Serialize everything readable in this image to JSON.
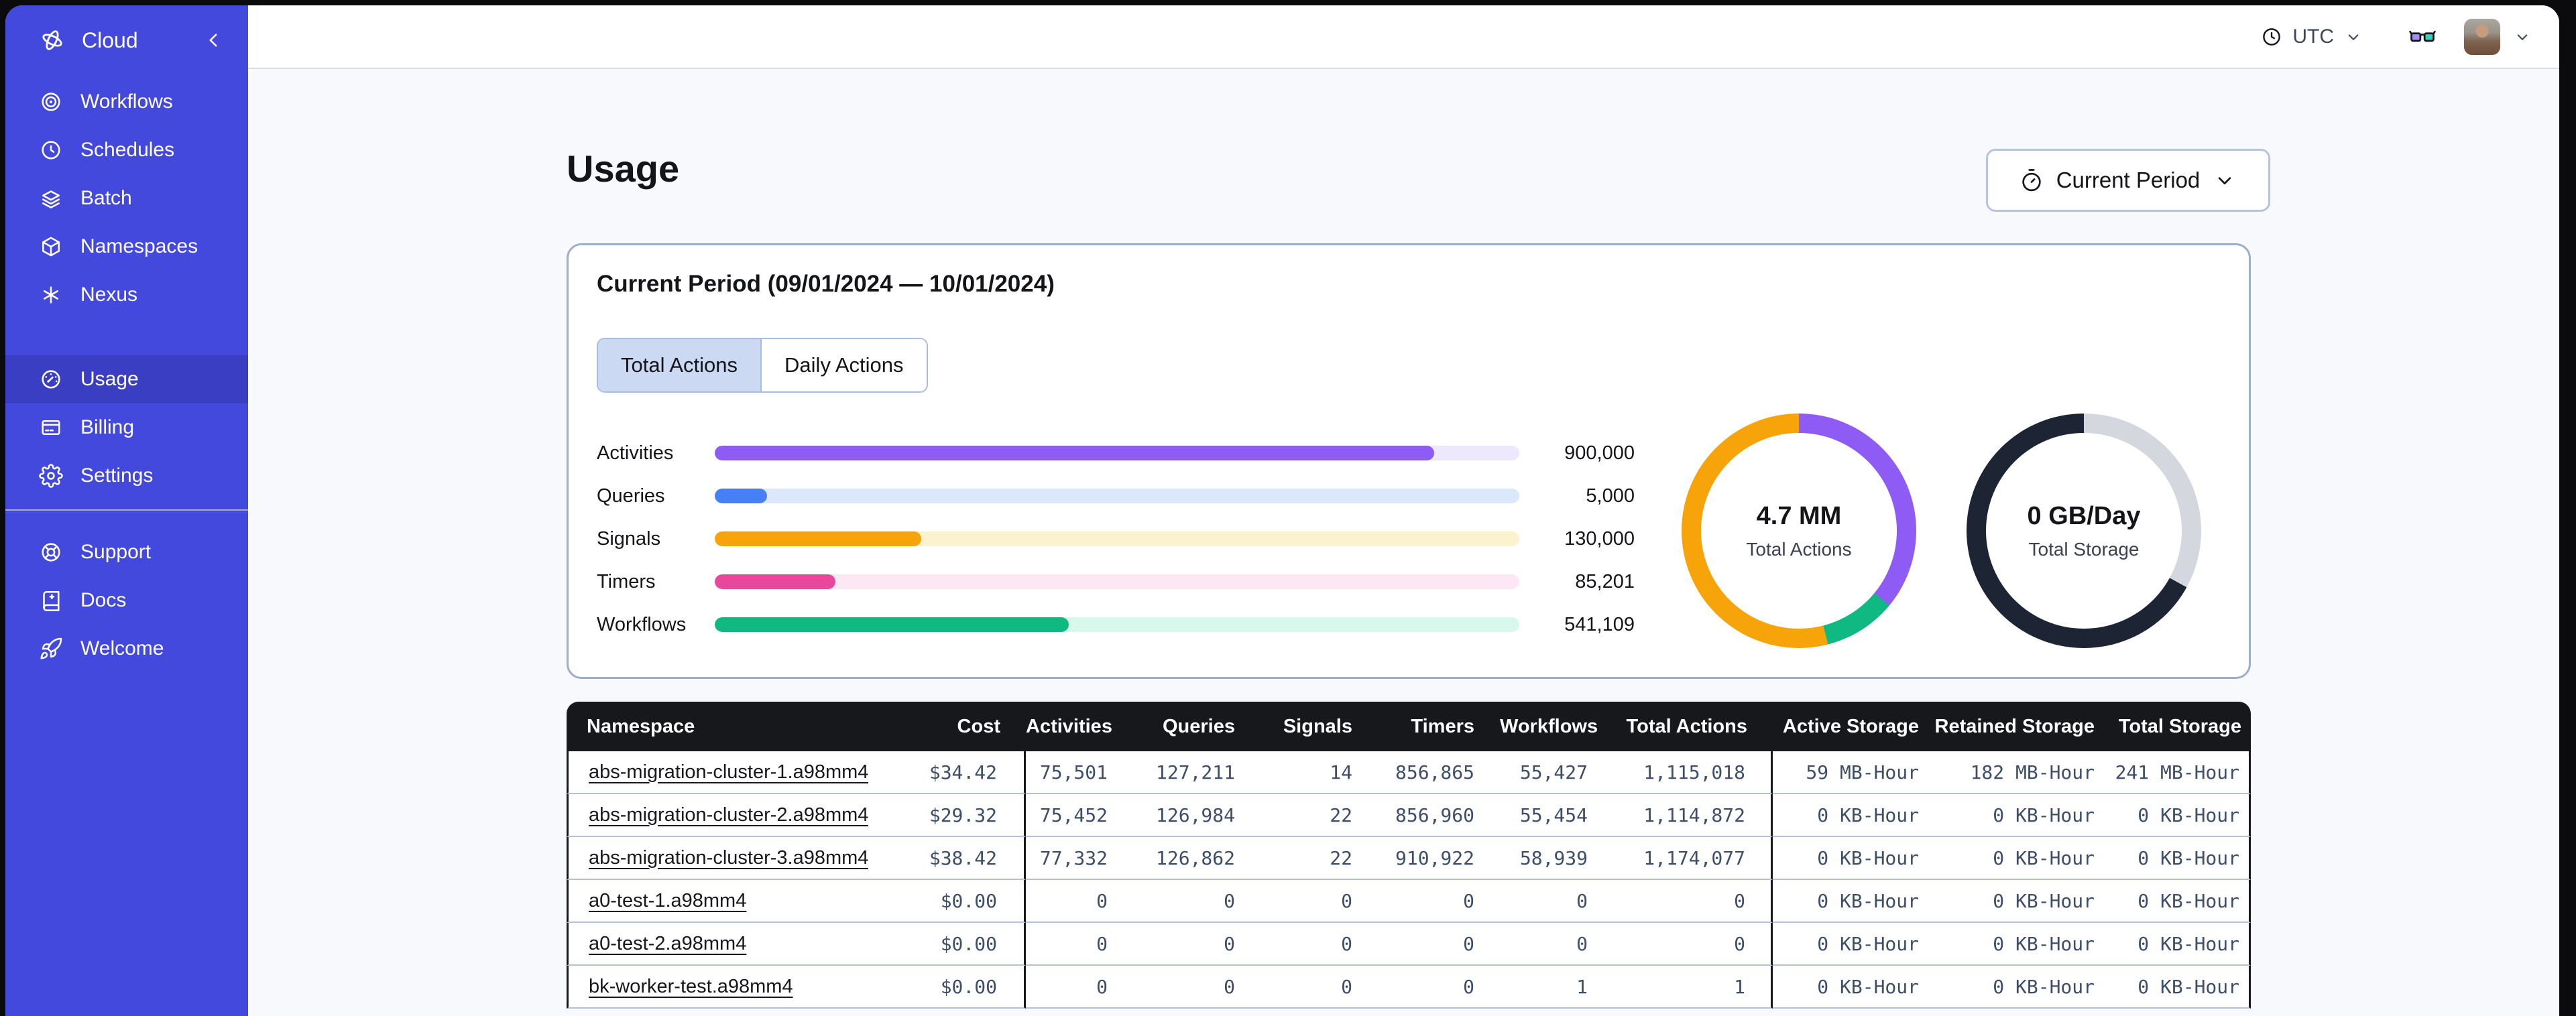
{
  "sidebar": {
    "product_label": "Cloud",
    "sections": [
      {
        "items": [
          {
            "icon": "workflows",
            "label": "Workflows"
          },
          {
            "icon": "schedules",
            "label": "Schedules"
          },
          {
            "icon": "batch",
            "label": "Batch"
          },
          {
            "icon": "namespaces",
            "label": "Namespaces"
          },
          {
            "icon": "nexus",
            "label": "Nexus"
          }
        ]
      },
      {
        "items": [
          {
            "icon": "usage",
            "label": "Usage",
            "active": true
          },
          {
            "icon": "billing",
            "label": "Billing"
          },
          {
            "icon": "settings",
            "label": "Settings"
          }
        ]
      },
      {
        "items": [
          {
            "icon": "support",
            "label": "Support"
          },
          {
            "icon": "docs",
            "label": "Docs"
          },
          {
            "icon": "welcome",
            "label": "Welcome"
          }
        ]
      }
    ]
  },
  "topbar": {
    "timezone": "UTC"
  },
  "page": {
    "title": "Usage",
    "period_selector": "Current Period"
  },
  "usage_card": {
    "title": "Current Period (09/01/2024 — 10/01/2024)",
    "tabs": [
      {
        "label": "Total Actions",
        "active": true
      },
      {
        "label": "Daily Actions",
        "active": false
      }
    ],
    "chart_data": [
      {
        "type": "bar",
        "title": "Actions by type",
        "categories": [
          "Activities",
          "Queries",
          "Signals",
          "Timers",
          "Workflows"
        ],
        "values": [
          900000,
          5000,
          130000,
          85201,
          541109
        ],
        "value_labels": [
          "900,000",
          "5,000",
          "130,000",
          "85,201",
          "541,109"
        ],
        "percent_filled": [
          89.4,
          6.5,
          25.7,
          15,
          44
        ],
        "colors": [
          "#8C5CF5",
          "#477FF7",
          "#F6A40A",
          "#E8489B",
          "#10B981"
        ],
        "track_colors": [
          "#EDE8FB",
          "#DBE7FB",
          "#FDF2CE",
          "#FDE7F5",
          "#D7F8EA"
        ]
      },
      {
        "type": "pie",
        "title": "Total Actions donut",
        "center_value": "4.7 MM",
        "center_label": "Total Actions",
        "segments": [
          {
            "name": "activities",
            "color": "#8E5BF5",
            "percent": 36
          },
          {
            "name": "workflows",
            "color": "#10B981",
            "percent": 10
          },
          {
            "name": "signals",
            "color": "#F6A40A",
            "percent": 54
          }
        ]
      },
      {
        "type": "pie",
        "title": "Total Storage donut",
        "center_value": "0 GB/Day",
        "center_label": "Total Storage",
        "segments": [
          {
            "name": "storage-used",
            "color": "#D4D7DD",
            "percent": 33
          },
          {
            "name": "storage-remaining",
            "color": "#1D2433",
            "percent": 67
          }
        ]
      }
    ]
  },
  "table": {
    "columns": [
      "Namespace",
      "Cost",
      "Activities",
      "Queries",
      "Signals",
      "Timers",
      "Workflows",
      "Total Actions",
      "Active Storage",
      "Retained Storage",
      "Total Storage"
    ],
    "rows": [
      [
        "abs-migration-cluster-1.a98mm4",
        "$34.42",
        "75,501",
        "127,211",
        "14",
        "856,865",
        "55,427",
        "1,115,018",
        "59 MB-Hour",
        "182 MB-Hour",
        "241 MB-Hour"
      ],
      [
        "abs-migration-cluster-2.a98mm4",
        "$29.32",
        "75,452",
        "126,984",
        "22",
        "856,960",
        "55,454",
        "1,114,872",
        "0 KB-Hour",
        "0 KB-Hour",
        "0 KB-Hour"
      ],
      [
        "abs-migration-cluster-3.a98mm4",
        "$38.42",
        "77,332",
        "126,862",
        "22",
        "910,922",
        "58,939",
        "1,174,077",
        "0 KB-Hour",
        "0 KB-Hour",
        "0 KB-Hour"
      ],
      [
        "a0-test-1.a98mm4",
        "$0.00",
        "0",
        "0",
        "0",
        "0",
        "0",
        "0",
        "0 KB-Hour",
        "0 KB-Hour",
        "0 KB-Hour"
      ],
      [
        "a0-test-2.a98mm4",
        "$0.00",
        "0",
        "0",
        "0",
        "0",
        "0",
        "0",
        "0 KB-Hour",
        "0 KB-Hour",
        "0 KB-Hour"
      ],
      [
        "bk-worker-test.a98mm4",
        "$0.00",
        "0",
        "0",
        "0",
        "0",
        "1",
        "1",
        "0 KB-Hour",
        "0 KB-Hour",
        "0 KB-Hour"
      ]
    ]
  },
  "colors": {
    "sidebar": "#4449DE",
    "sidebar_active": "#3A3EC2",
    "table_header": "#17181C",
    "row_divider": "#B3C2DF",
    "card_border": "#9DAECB",
    "tab_active_bg": "#CBDAF2",
    "glasses_left_lens": "#A78BFA",
    "glasses_right_lens": "#2DD4BF"
  }
}
